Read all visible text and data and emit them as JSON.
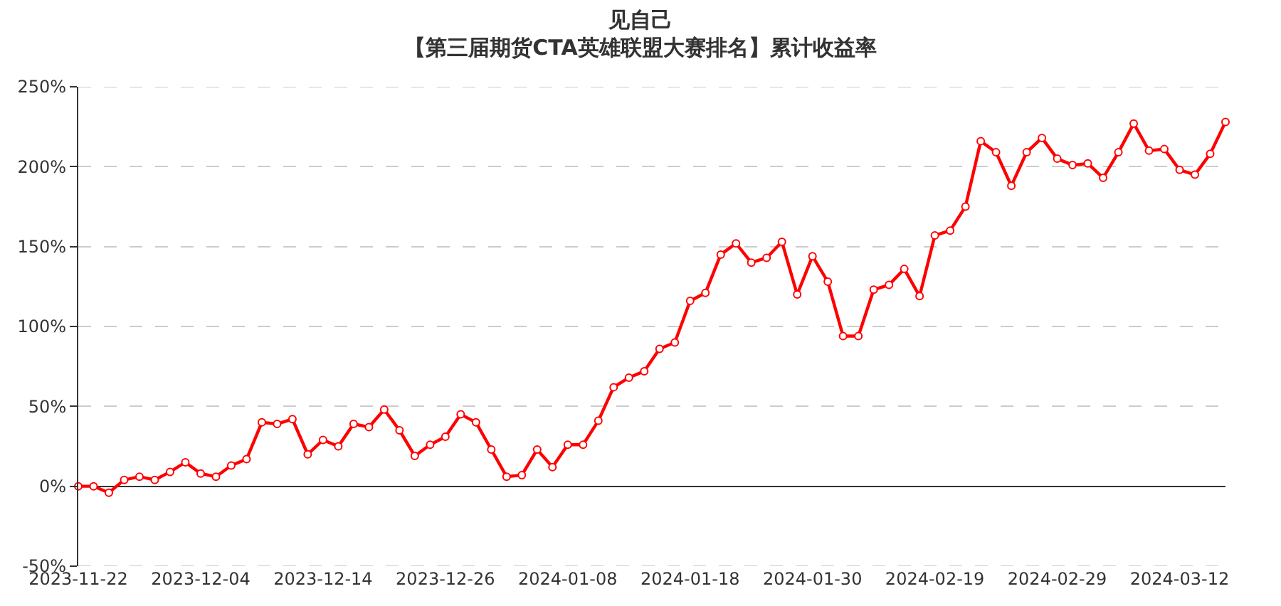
{
  "chart_data": {
    "type": "line",
    "title": "见自己",
    "subtitle": "【第三届期货CTA英雄联盟大赛排名】累计收益率",
    "categories": [
      "2023-11-22",
      null,
      null,
      null,
      null,
      null,
      null,
      null,
      "2023-12-04",
      null,
      null,
      null,
      null,
      null,
      null,
      null,
      "2023-12-14",
      null,
      null,
      null,
      null,
      null,
      null,
      null,
      "2023-12-26",
      null,
      null,
      null,
      null,
      null,
      null,
      null,
      "2024-01-08",
      null,
      null,
      null,
      null,
      null,
      null,
      null,
      "2024-01-18",
      null,
      null,
      null,
      null,
      null,
      null,
      null,
      "2024-01-30",
      null,
      null,
      null,
      null,
      null,
      null,
      null,
      "2024-02-19",
      null,
      null,
      null,
      null,
      null,
      null,
      null,
      "2024-02-29",
      null,
      null,
      null,
      null,
      null,
      null,
      null,
      "2024-03-12",
      null,
      null,
      null
    ],
    "series": [
      {
        "color": "#ff0000",
        "values": [
          0,
          0,
          -4,
          4,
          6,
          4,
          9,
          15,
          8,
          6,
          13,
          17,
          40,
          39,
          42,
          20,
          29,
          25,
          39,
          37,
          48,
          35,
          19,
          26,
          31,
          45,
          40,
          23,
          6,
          7,
          23,
          12,
          26,
          26,
          41,
          62,
          68,
          72,
          86,
          90,
          116,
          121,
          145,
          152,
          140,
          143,
          153,
          120,
          144,
          128,
          94,
          94,
          123,
          126,
          136,
          119,
          157,
          160,
          175,
          216,
          209,
          188,
          209,
          218,
          205,
          201,
          202,
          193,
          209,
          227,
          210,
          211,
          198,
          195,
          208,
          228
        ]
      }
    ],
    "ylim": [
      -50,
      250
    ],
    "yticks": [
      {
        "value": -50,
        "label": "-50%"
      },
      {
        "value": 0,
        "label": "0%"
      },
      {
        "value": 50,
        "label": "50%"
      },
      {
        "value": 100,
        "label": "100%"
      },
      {
        "value": 150,
        "label": "150%"
      },
      {
        "value": 200,
        "label": "200%"
      },
      {
        "value": 250,
        "label": "250%"
      }
    ],
    "grid": "y",
    "marker": "circle",
    "line_style": "solid"
  }
}
